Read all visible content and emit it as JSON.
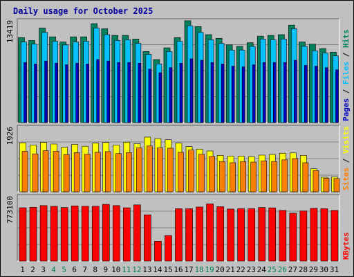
{
  "chart_data": {
    "type": "bar",
    "title": "Daily usage for October 2025",
    "categories": [
      "1",
      "2",
      "3",
      "4",
      "5",
      "6",
      "7",
      "8",
      "9",
      "10",
      "11",
      "12",
      "13",
      "14",
      "15",
      "16",
      "17",
      "18",
      "19",
      "20",
      "21",
      "22",
      "23",
      "24",
      "25",
      "26",
      "27",
      "28",
      "29",
      "30",
      "31"
    ],
    "weekend_categories": [
      "4",
      "5",
      "11",
      "12",
      "18",
      "19",
      "25",
      "26"
    ],
    "panels": [
      {
        "id": "hits",
        "ymax": 13419,
        "ymax_label": "13419",
        "series": [
          {
            "name": "Hits",
            "color": "#00805c",
            "values": [
              11600,
              11200,
              12900,
              11700,
              11000,
              11700,
              11700,
              13500,
              12800,
              11900,
              11900,
              11400,
              9700,
              8600,
              10200,
              11600,
              13900,
              13100,
              12000,
              11500,
              10600,
              10400,
              10900,
              11800,
              11900,
              12000,
              13300,
              11000,
              10700,
              10100,
              9600
            ]
          },
          {
            "name": "Files",
            "color": "#00c0ff",
            "values": [
              11000,
              10700,
              12300,
              11100,
              10600,
              11000,
              11100,
              12900,
              12000,
              11200,
              11300,
              10800,
              9300,
              8000,
              9700,
              11100,
              13200,
              12300,
              11300,
              10800,
              9900,
              9900,
              10400,
              11400,
              11300,
              11400,
              12800,
              10400,
              9800,
              9500,
              9100
            ]
          },
          {
            "name": "Pages",
            "color": "#0000c0",
            "values": [
              8200,
              8000,
              8400,
              8100,
              7900,
              8100,
              8000,
              8600,
              8400,
              8200,
              8200,
              8100,
              7300,
              6800,
              7500,
              8100,
              8700,
              8500,
              8200,
              8000,
              7700,
              7600,
              7900,
              8200,
              8200,
              8200,
              8500,
              7800,
              7700,
              7500,
              7200
            ]
          }
        ],
        "axis_legend": [
          "Pages",
          "Files",
          "Hits"
        ]
      },
      {
        "id": "visits",
        "ymax": 1926,
        "ymax_label": "1926",
        "series": [
          {
            "name": "Visits",
            "color": "#ffff00",
            "values": [
              1550,
              1480,
              1560,
              1510,
              1410,
              1500,
              1440,
              1540,
              1560,
              1480,
              1570,
              1520,
              1730,
              1680,
              1650,
              1540,
              1430,
              1350,
              1290,
              1150,
              1130,
              1130,
              1110,
              1160,
              1180,
              1220,
              1230,
              1150,
              730,
              460,
              470
            ]
          },
          {
            "name": "Sites",
            "color": "#ff8000",
            "values": [
              1280,
              1200,
              1300,
              1280,
              1180,
              1240,
              1190,
              1250,
              1270,
              1210,
              1240,
              1390,
              1450,
              1390,
              1380,
              1250,
              1320,
              1190,
              1120,
              960,
              920,
              960,
              940,
              980,
              960,
              1010,
              1050,
              920,
              670,
              430,
              420
            ]
          }
        ],
        "axis_legend": [
          "Sites",
          "Visits"
        ]
      },
      {
        "id": "kbytes",
        "ymax": 773100,
        "ymax_label": "773100",
        "series": [
          {
            "name": "KBytes",
            "color": "#ff0000",
            "values": [
              676000,
              682000,
              704000,
              695000,
              680000,
              700000,
              695000,
              695000,
              720000,
              704000,
              676000,
              713000,
              587000,
              252000,
              324000,
              665000,
              665000,
              686000,
              726000,
              690000,
              660000,
              665000,
              665000,
              680000,
              675000,
              643000,
              608000,
              636000,
              670000,
              665000,
              643000
            ]
          }
        ],
        "axis_legend": [
          "KBytes"
        ]
      }
    ]
  }
}
